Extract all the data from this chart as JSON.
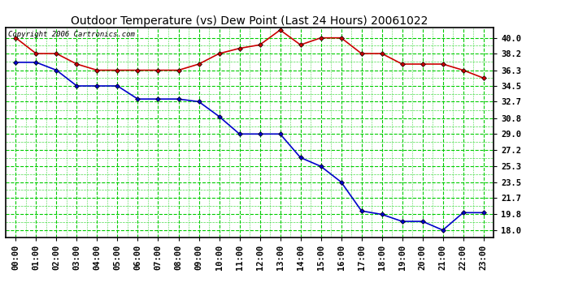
{
  "title": "Outdoor Temperature (vs) Dew Point (Last 24 Hours) 20061022",
  "copyright": "Copyright 2006 Cartronics.com",
  "hours": [
    "00:00",
    "01:00",
    "02:00",
    "03:00",
    "04:00",
    "05:00",
    "06:00",
    "07:00",
    "08:00",
    "09:00",
    "10:00",
    "11:00",
    "12:00",
    "13:00",
    "14:00",
    "15:00",
    "16:00",
    "17:00",
    "18:00",
    "19:00",
    "20:00",
    "21:00",
    "22:00",
    "23:00"
  ],
  "temp": [
    40.0,
    38.2,
    38.2,
    37.0,
    36.3,
    36.3,
    36.3,
    36.3,
    36.3,
    37.0,
    38.2,
    38.8,
    39.2,
    40.9,
    39.2,
    40.0,
    40.0,
    38.2,
    38.2,
    37.0,
    37.0,
    37.0,
    36.3,
    35.4
  ],
  "dewpoint": [
    37.2,
    37.2,
    36.3,
    34.5,
    34.5,
    34.5,
    33.0,
    33.0,
    33.0,
    32.7,
    31.0,
    29.0,
    29.0,
    29.0,
    26.3,
    25.3,
    23.5,
    20.2,
    19.8,
    19.0,
    19.0,
    18.0,
    20.0,
    20.0
  ],
  "temp_color": "#cc0000",
  "dew_color": "#0000cc",
  "bg_color": "#ffffff",
  "grid_major_color": "#00cc00",
  "grid_minor_color": "#00cc00",
  "title_color": "#000000",
  "yticks": [
    18.0,
    19.8,
    21.7,
    23.5,
    25.3,
    27.2,
    29.0,
    30.8,
    32.7,
    34.5,
    36.3,
    38.2,
    40.0
  ],
  "ymin": 17.2,
  "ymax": 41.2,
  "marker_size": 3,
  "line_width": 1.2,
  "title_fontsize": 10,
  "tick_fontsize": 7.5,
  "copyright_fontsize": 6.5
}
